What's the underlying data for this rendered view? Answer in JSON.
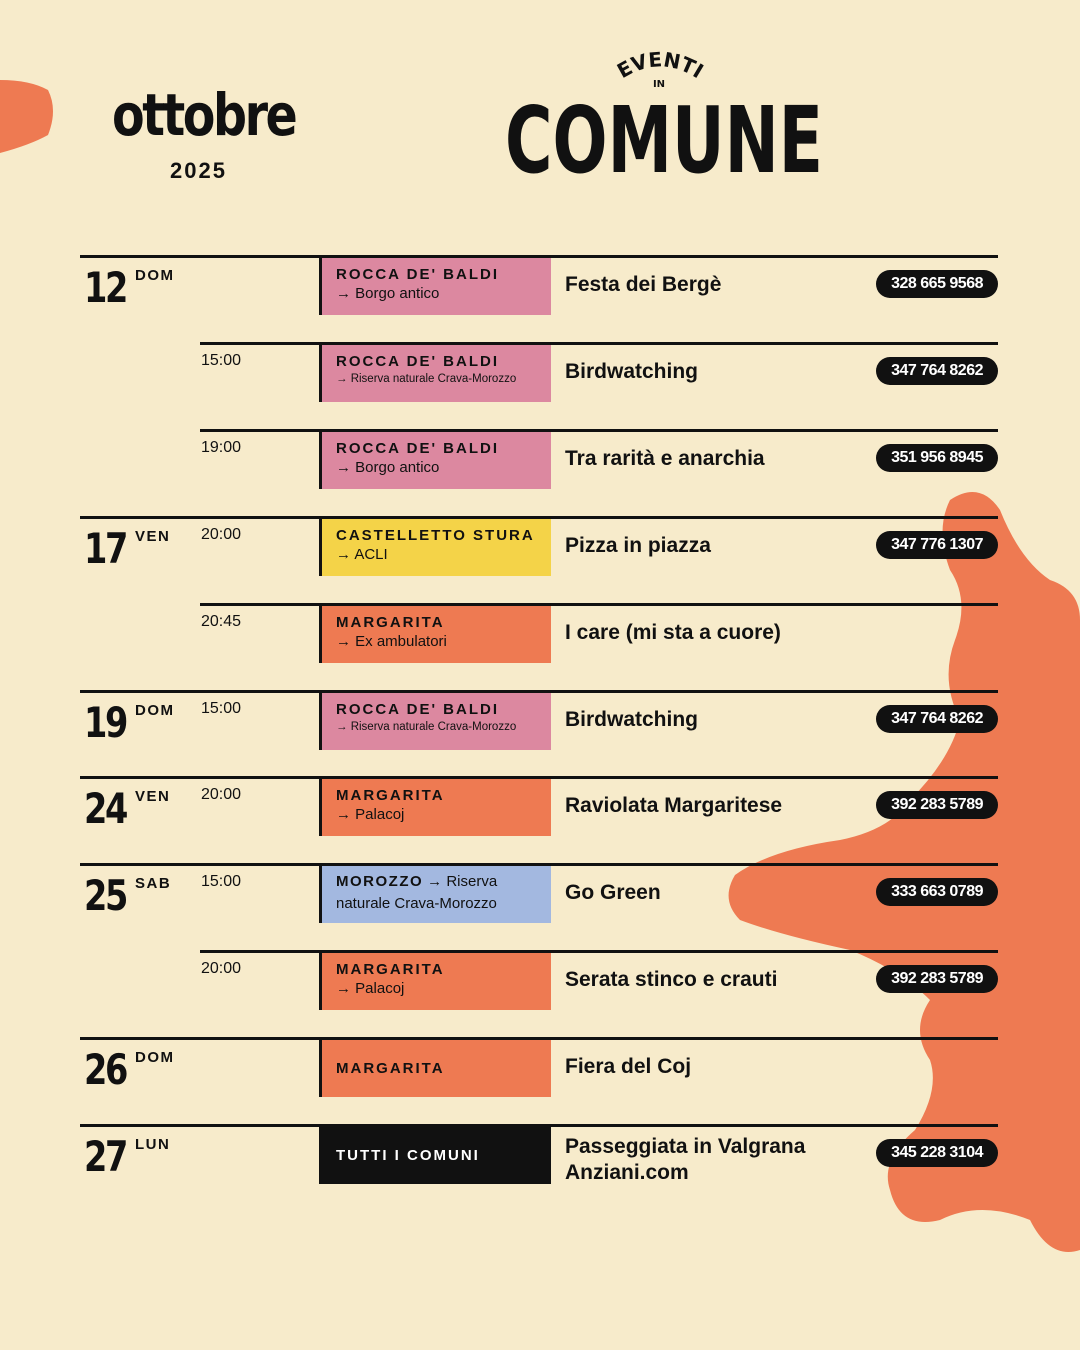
{
  "header": {
    "month": "ottobre",
    "year": "2025"
  },
  "logo": {
    "top": "EVENTI",
    "mid": "IN",
    "main": "COMUNE"
  },
  "colors": {
    "background": "#f7ebcb",
    "pink": "#dc88a0",
    "yellow": "#f4d348",
    "orange": "#ee7a52",
    "blue": "#a3b8e0",
    "black": "#111111"
  },
  "events": [
    {
      "day": "12",
      "dow": "DOM",
      "time": "",
      "place": "ROCCA DE' BALDI",
      "sub": "→ Borgo antico",
      "color": "pink",
      "title": "Festa dei Bergè",
      "phone": "328 665 9568"
    },
    {
      "day": "",
      "dow": "",
      "time": "15:00",
      "place": "ROCCA DE' BALDI",
      "sub": "→ Riserva naturale Crava-Morozzo",
      "color": "pink",
      "title": "Birdwatching",
      "phone": "347 764 8262"
    },
    {
      "day": "",
      "dow": "",
      "time": "19:00",
      "place": "ROCCA DE' BALDI",
      "sub": "→ Borgo antico",
      "color": "pink",
      "title": "Tra rarità e anarchia",
      "phone": "351 956 8945"
    },
    {
      "day": "17",
      "dow": "VEN",
      "time": "20:00",
      "place": "CASTELLETTO STURA",
      "sub": "→ ACLI",
      "color": "yellow",
      "title": "Pizza in piazza",
      "phone": "347 776 1307"
    },
    {
      "day": "",
      "dow": "",
      "time": "20:45",
      "place": "MARGARITA",
      "sub": "→ Ex ambulatori",
      "color": "orange",
      "title": "I care (mi sta a cuore)",
      "phone": ""
    },
    {
      "day": "19",
      "dow": "DOM",
      "time": "15:00",
      "place": "ROCCA DE' BALDI",
      "sub": "→ Riserva naturale Crava-Morozzo",
      "color": "pink",
      "title": "Birdwatching",
      "phone": "347 764 8262"
    },
    {
      "day": "24",
      "dow": "VEN",
      "time": "20:00",
      "place": "MARGARITA",
      "sub": "→ Palacoj",
      "color": "orange",
      "title": "Raviolata Margaritese",
      "phone": "392 283 5789"
    },
    {
      "day": "25",
      "dow": "SAB",
      "time": "15:00",
      "place": "MOROZZO",
      "sub": "→ Riserva naturale Crava-Morozzo",
      "color": "blue",
      "title": "Go Green",
      "phone": "333 663 0789"
    },
    {
      "day": "",
      "dow": "",
      "time": "20:00",
      "place": "MARGARITA",
      "sub": "→ Palacoj",
      "color": "orange",
      "title": "Serata stinco e crauti",
      "phone": "392 283 5789"
    },
    {
      "day": "26",
      "dow": "DOM",
      "time": "",
      "place": "MARGARITA",
      "sub": "",
      "color": "orange",
      "title": "Fiera del Coj",
      "phone": ""
    },
    {
      "day": "27",
      "dow": "LUN",
      "time": "",
      "place": "TUTTI I COMUNI",
      "sub": "",
      "color": "black",
      "title": "Passeggiata in Valgrana\nAnziani.com",
      "phone": "345 228 3104"
    }
  ]
}
